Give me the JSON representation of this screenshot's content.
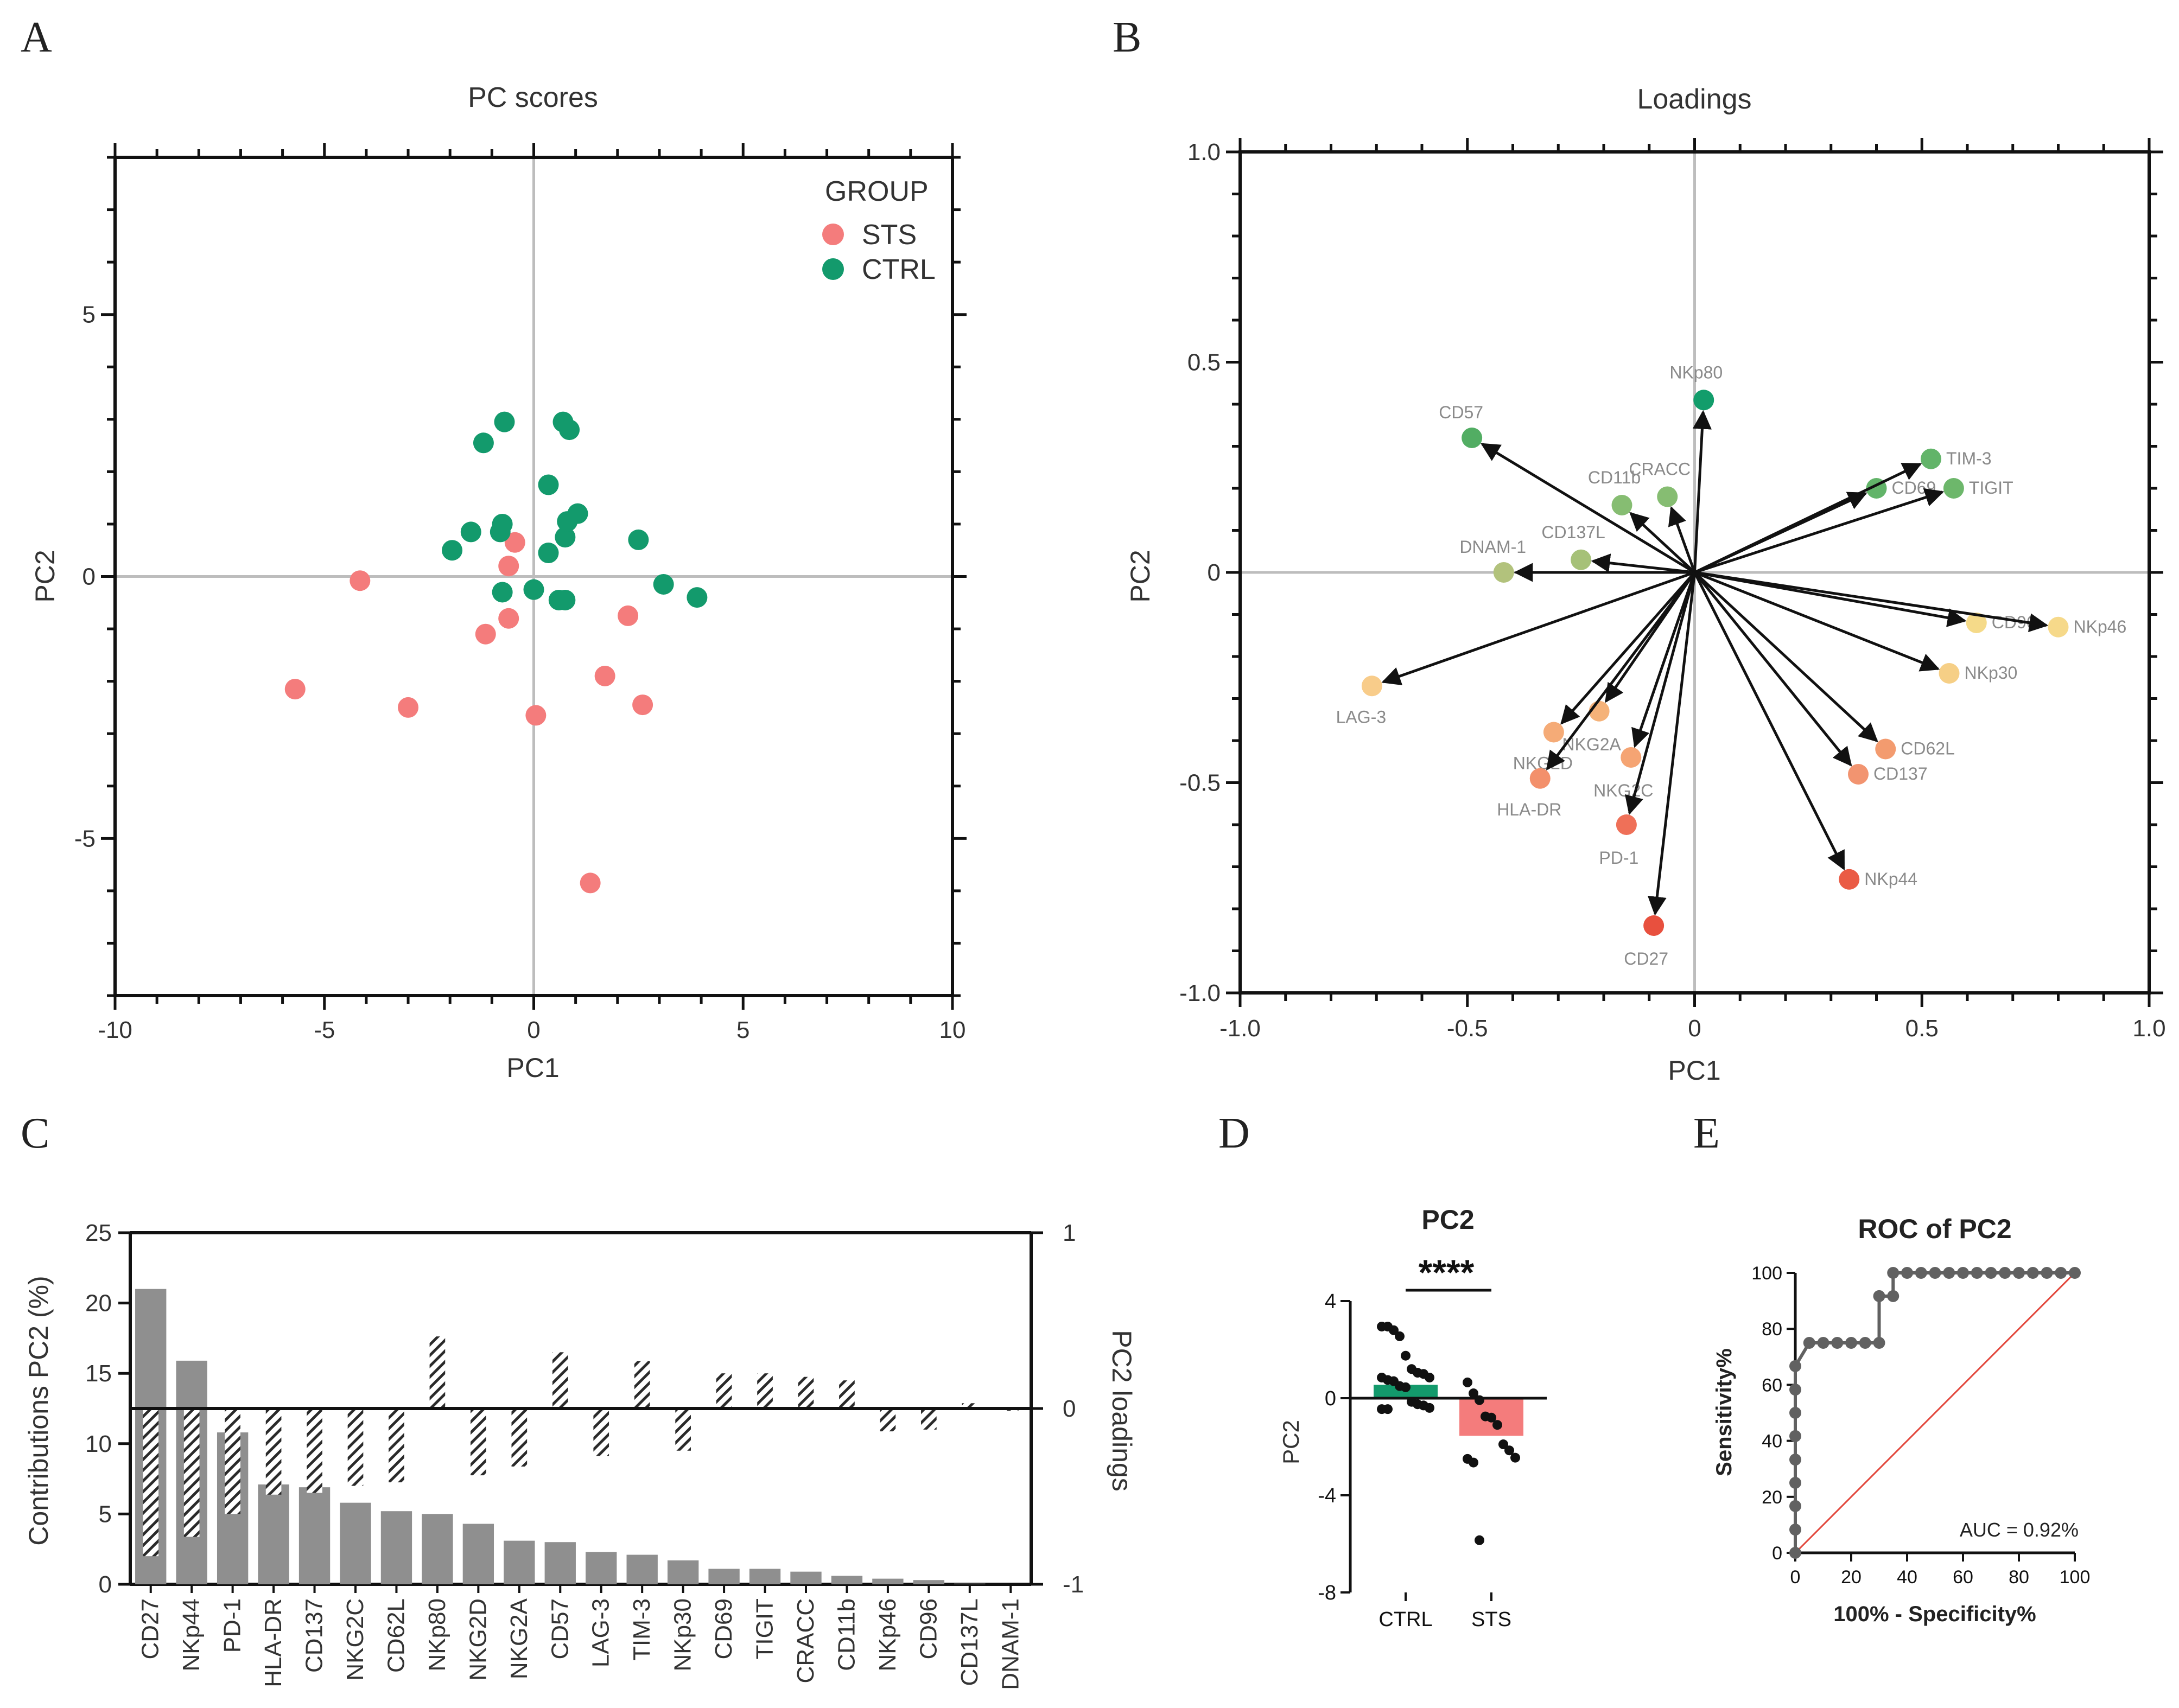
{
  "panel_letters": {
    "a": "A",
    "b": "B",
    "c": "C",
    "d": "D",
    "e": "E"
  },
  "colors": {
    "sts": "#f47c7c",
    "ctrl": "#139a6c",
    "bar": "#8f8f8f",
    "axis": "#111111",
    "grid": "#bdbdbd",
    "roc_ref": "#e2453a",
    "roc_point": "#616161"
  },
  "chart_data": [
    {
      "id": "A",
      "type": "scatter",
      "title": "PC scores",
      "xlabel": "PC1",
      "ylabel": "PC2",
      "xlim": [
        -10,
        10
      ],
      "ylim": [
        -8,
        8
      ],
      "xticks": [
        -10,
        -5,
        0,
        5,
        10
      ],
      "yticks": [
        -5,
        0,
        5
      ],
      "legend_title": "GROUP",
      "legend_position": "top-right",
      "series": [
        {
          "name": "STS",
          "points": [
            [
              -5.7,
              -2.15
            ],
            [
              -4.15,
              -0.08
            ],
            [
              -3.0,
              -2.5
            ],
            [
              -1.15,
              -1.1
            ],
            [
              -0.6,
              -0.8
            ],
            [
              -0.6,
              0.2
            ],
            [
              -0.45,
              0.65
            ],
            [
              0.05,
              -2.65
            ],
            [
              1.35,
              -5.85
            ],
            [
              1.7,
              -1.9
            ],
            [
              2.25,
              -0.75
            ],
            [
              2.6,
              -2.45
            ]
          ]
        },
        {
          "name": "CTRL",
          "points": [
            [
              -1.95,
              0.5
            ],
            [
              -1.5,
              0.85
            ],
            [
              -1.2,
              2.55
            ],
            [
              -0.8,
              0.85
            ],
            [
              -0.75,
              1.0
            ],
            [
              -0.7,
              2.95
            ],
            [
              -0.75,
              -0.3
            ],
            [
              0.0,
              -0.25
            ],
            [
              0.35,
              1.75
            ],
            [
              0.35,
              0.45
            ],
            [
              0.6,
              -0.45
            ],
            [
              0.7,
              2.95
            ],
            [
              0.75,
              -0.45
            ],
            [
              0.75,
              0.75
            ],
            [
              0.8,
              1.05
            ],
            [
              0.85,
              2.8
            ],
            [
              1.05,
              1.2
            ],
            [
              2.5,
              0.7
            ],
            [
              3.1,
              -0.15
            ],
            [
              3.9,
              -0.4
            ]
          ]
        }
      ]
    },
    {
      "id": "B",
      "type": "scatter",
      "subtype": "loadings-biplot",
      "title": "Loadings",
      "xlabel": "PC1",
      "ylabel": "PC2",
      "xlim": [
        -1.0,
        1.0
      ],
      "ylim": [
        -1.0,
        1.0
      ],
      "xticks": [
        -1.0,
        -0.5,
        0,
        0.5,
        1.0
      ],
      "yticks": [
        -1.0,
        -0.5,
        0,
        0.5,
        1.0
      ],
      "variables": [
        {
          "name": "NKp80",
          "x": 0.02,
          "y": 0.41,
          "color": "#129d6b"
        },
        {
          "name": "CD57",
          "x": -0.49,
          "y": 0.32,
          "color": "#52ad63"
        },
        {
          "name": "CD69",
          "x": 0.4,
          "y": 0.2,
          "color": "#62b469"
        },
        {
          "name": "TIM-3",
          "x": 0.52,
          "y": 0.27,
          "color": "#62b469"
        },
        {
          "name": "TIGIT",
          "x": 0.57,
          "y": 0.2,
          "color": "#6db76b"
        },
        {
          "name": "CD11b",
          "x": -0.16,
          "y": 0.16,
          "color": "#86bd72"
        },
        {
          "name": "CRACC",
          "x": -0.06,
          "y": 0.18,
          "color": "#86bd72"
        },
        {
          "name": "CD137L",
          "x": -0.25,
          "y": 0.03,
          "color": "#a6c178"
        },
        {
          "name": "DNAM-1",
          "x": -0.42,
          "y": 0.0,
          "color": "#b2c27c"
        },
        {
          "name": "CD96",
          "x": 0.62,
          "y": -0.12,
          "color": "#f5da89"
        },
        {
          "name": "NKp46",
          "x": 0.8,
          "y": -0.13,
          "color": "#f6d98a"
        },
        {
          "name": "NKp30",
          "x": 0.56,
          "y": -0.24,
          "color": "#f6cf86"
        },
        {
          "name": "LAG-3",
          "x": -0.71,
          "y": -0.27,
          "color": "#f8cc8a"
        },
        {
          "name": "NKG2A",
          "x": -0.21,
          "y": -0.33,
          "color": "#f5b279"
        },
        {
          "name": "NKG2D",
          "x": -0.31,
          "y": -0.38,
          "color": "#f5ab77"
        },
        {
          "name": "NKG2C",
          "x": -0.14,
          "y": -0.44,
          "color": "#f5a473"
        },
        {
          "name": "HLA-DR",
          "x": -0.34,
          "y": -0.49,
          "color": "#f3906b"
        },
        {
          "name": "CD62L",
          "x": 0.42,
          "y": -0.42,
          "color": "#f39b6f"
        },
        {
          "name": "CD137",
          "x": 0.36,
          "y": -0.48,
          "color": "#f29470"
        },
        {
          "name": "PD-1",
          "x": -0.15,
          "y": -0.6,
          "color": "#ef7058"
        },
        {
          "name": "NKp44",
          "x": 0.34,
          "y": -0.73,
          "color": "#ea5b45"
        },
        {
          "name": "CD27",
          "x": -0.09,
          "y": -0.84,
          "color": "#e8503e"
        }
      ]
    },
    {
      "id": "C",
      "type": "bar",
      "xlabel": "",
      "ylabel": "Contributions PC2 (%)",
      "y2label": "PC2 loadings",
      "ylim": [
        0,
        25
      ],
      "y2lim": [
        -1,
        1
      ],
      "yticks": [
        0,
        5,
        10,
        15,
        20,
        25
      ],
      "y2ticks": [
        -1,
        0,
        1
      ],
      "categories": [
        "CD27",
        "NKp44",
        "PD-1",
        "HLA-DR",
        "CD137",
        "NKG2C",
        "CD62L",
        "NKp80",
        "NKG2D",
        "NKG2A",
        "CD57",
        "LAG-3",
        "TIM-3",
        "NKp30",
        "CD69",
        "TIGIT",
        "CRACC",
        "CD11b",
        "NKp46",
        "CD96",
        "CD137L",
        "DNAM-1"
      ],
      "series": [
        {
          "name": "Contributions PC2 (%)",
          "axis": "left",
          "style": "solid",
          "values": [
            21.0,
            15.9,
            10.8,
            7.1,
            6.9,
            5.8,
            5.2,
            5.0,
            4.3,
            3.1,
            3.0,
            2.3,
            2.1,
            1.7,
            1.1,
            1.1,
            0.9,
            0.6,
            0.4,
            0.3,
            0.05,
            0.0
          ]
        },
        {
          "name": "PC2 loadings",
          "axis": "right",
          "style": "hatched",
          "values": [
            -0.84,
            -0.73,
            -0.6,
            -0.49,
            -0.48,
            -0.44,
            -0.42,
            0.41,
            -0.38,
            -0.33,
            0.32,
            -0.27,
            0.27,
            -0.24,
            0.2,
            0.2,
            0.18,
            0.16,
            -0.13,
            -0.12,
            0.03,
            0.0
          ]
        }
      ]
    },
    {
      "id": "D",
      "type": "bar",
      "title": "PC2",
      "xlabel": "",
      "ylabel": "PC2",
      "ylim": [
        -8,
        4
      ],
      "yticks": [
        -8,
        -4,
        0,
        4
      ],
      "categories": [
        "CTRL",
        "STS"
      ],
      "values": [
        0.55,
        -1.55
      ],
      "significance": "****",
      "points": {
        "CTRL": [
          2.95,
          2.95,
          2.8,
          2.55,
          1.75,
          1.2,
          1.05,
          1.0,
          0.85,
          0.85,
          0.75,
          0.7,
          0.5,
          0.45,
          -0.15,
          -0.25,
          -0.3,
          -0.4,
          -0.45,
          -0.45
        ],
        "STS": [
          0.65,
          0.2,
          -0.08,
          -0.75,
          -0.8,
          -1.1,
          -1.9,
          -2.15,
          -2.45,
          -2.5,
          -2.65,
          -5.85
        ]
      }
    },
    {
      "id": "E",
      "type": "line",
      "title": "ROC of PC2",
      "xlabel": "100% - Specificity%",
      "ylabel": "Sensitivity%",
      "xlim": [
        0,
        100
      ],
      "ylim": [
        0,
        100
      ],
      "xticks": [
        0,
        20,
        40,
        60,
        80,
        100
      ],
      "yticks": [
        0,
        20,
        40,
        60,
        80,
        100
      ],
      "annotation": "AUC = 0.92%",
      "series": [
        {
          "name": "ROC",
          "x": [
            0,
            0,
            0,
            0,
            0,
            0,
            0,
            0,
            0,
            5,
            10,
            15,
            20,
            25,
            30,
            30,
            35,
            35,
            40,
            45,
            50,
            55,
            60,
            65,
            70,
            75,
            80,
            85,
            90,
            95,
            100
          ],
          "y": [
            0,
            8.3,
            16.7,
            25,
            33.3,
            41.7,
            50,
            58.3,
            66.7,
            75,
            75,
            75,
            75,
            75,
            75,
            91.7,
            91.7,
            100,
            100,
            100,
            100,
            100,
            100,
            100,
            100,
            100,
            100,
            100,
            100,
            100,
            100
          ]
        },
        {
          "name": "Reference",
          "x": [
            0,
            100
          ],
          "y": [
            0,
            100
          ]
        }
      ]
    }
  ]
}
